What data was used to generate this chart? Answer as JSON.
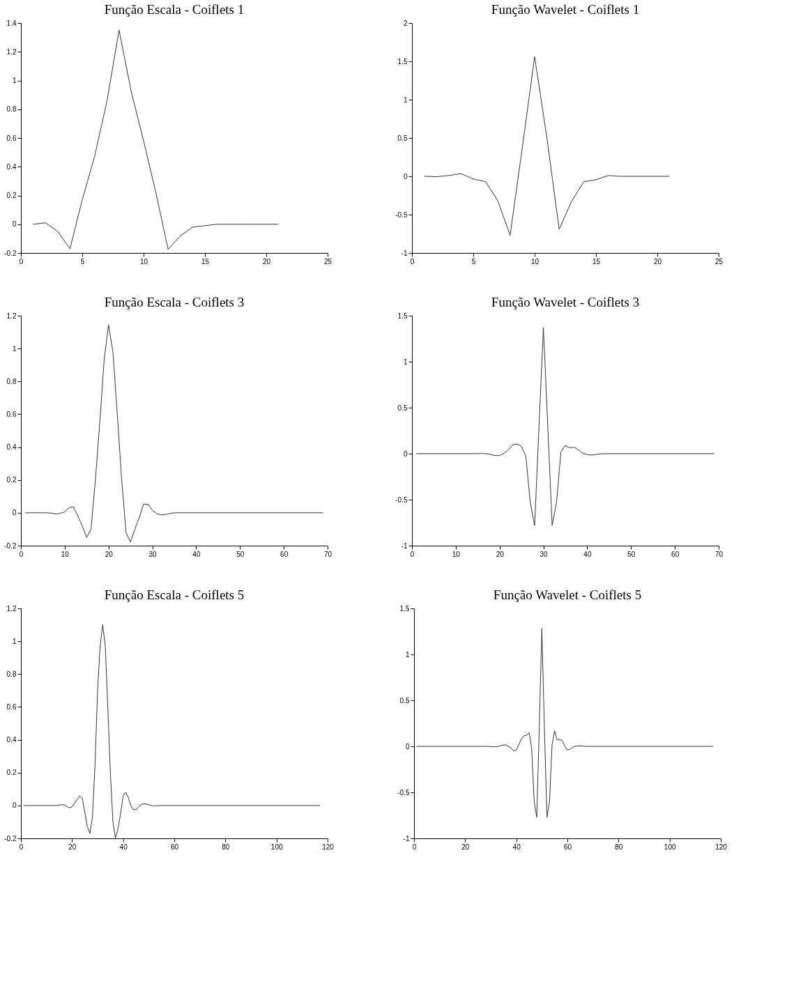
{
  "chart_data": [
    {
      "type": "line",
      "title": "Função Escala - Coiflets 1",
      "color": "#333333",
      "x": [
        1,
        2,
        3,
        4,
        5,
        6,
        7,
        8,
        9,
        10,
        11,
        12,
        13,
        14,
        15,
        16,
        17,
        18,
        19,
        20,
        21
      ],
      "values": [
        0,
        0.01,
        -0.05,
        -0.17,
        0.17,
        0.47,
        0.85,
        1.35,
        0.92,
        0.58,
        0.22,
        -0.175,
        -0.08,
        -0.02,
        -0.01,
        0,
        0,
        0,
        0,
        0,
        0
      ],
      "xlim": [
        0,
        25
      ],
      "xticks": [
        0,
        5,
        10,
        15,
        20,
        25
      ],
      "ylim": [
        -0.2,
        1.4
      ],
      "yticks": [
        -0.2,
        0,
        0.2,
        0.4,
        0.6,
        0.8,
        1,
        1.2,
        1.4
      ]
    },
    {
      "type": "line",
      "title": "Função Wavelet - Coiflets 1",
      "color": "#333333",
      "x": [
        1,
        2,
        3,
        4,
        5,
        6,
        7,
        8,
        9,
        10,
        11,
        12,
        13,
        14,
        15,
        16,
        17,
        18,
        19,
        20,
        21
      ],
      "values": [
        0,
        -0.005,
        0.01,
        0.035,
        -0.035,
        -0.07,
        -0.32,
        -0.77,
        0.38,
        1.56,
        0.5,
        -0.69,
        -0.33,
        -0.07,
        -0.045,
        0.01,
        0,
        0,
        0,
        0,
        0
      ],
      "xlim": [
        0,
        25
      ],
      "xticks": [
        0,
        5,
        10,
        15,
        20,
        25
      ],
      "ylim": [
        -1,
        2
      ],
      "yticks": [
        -1,
        -0.5,
        0,
        0.5,
        1,
        1.5,
        2
      ]
    },
    {
      "type": "line",
      "title": "Função Escala - Coiflets 3",
      "color": "#333333",
      "x": [
        1,
        6,
        7,
        8,
        9,
        10,
        11,
        12,
        13,
        14,
        15,
        16,
        17,
        18,
        19,
        20,
        21,
        22,
        23,
        24,
        25,
        26,
        27,
        28,
        29,
        30,
        31,
        32,
        33,
        34,
        35,
        69
      ],
      "values": [
        0,
        0,
        -0.002,
        -0.008,
        -0.003,
        0.005,
        0.032,
        0.036,
        -0.02,
        -0.08,
        -0.15,
        -0.1,
        0.2,
        0.55,
        0.93,
        1.145,
        0.98,
        0.6,
        0.2,
        -0.12,
        -0.178,
        -0.1,
        -0.03,
        0.053,
        0.052,
        0.015,
        -0.005,
        -0.012,
        -0.011,
        -0.004,
        0,
        0
      ],
      "xlim": [
        0,
        70
      ],
      "xticks": [
        0,
        10,
        20,
        30,
        40,
        50,
        60,
        70
      ],
      "ylim": [
        -0.2,
        1.2
      ],
      "yticks": [
        -0.2,
        0,
        0.2,
        0.4,
        0.6,
        0.8,
        1,
        1.2
      ]
    },
    {
      "type": "line",
      "title": "Função Wavelet - Coiflets 3",
      "color": "#333333",
      "x": [
        1,
        15,
        16,
        17,
        18,
        19,
        20,
        21,
        22,
        23,
        24,
        25,
        26,
        27,
        28,
        29,
        30,
        31,
        32,
        33,
        34,
        35,
        36,
        37,
        38,
        39,
        40,
        41,
        42,
        43,
        44,
        69
      ],
      "values": [
        0,
        0,
        0.003,
        0,
        -0.01,
        -0.02,
        -0.02,
        0.005,
        0.04,
        0.095,
        0.105,
        0.08,
        -0.03,
        -0.53,
        -0.78,
        0.3,
        1.37,
        0.3,
        -0.78,
        -0.53,
        0.02,
        0.09,
        0.065,
        0.07,
        0.04,
        0.005,
        -0.01,
        -0.015,
        -0.008,
        -0.003,
        0,
        0
      ],
      "xlim": [
        0,
        70
      ],
      "xticks": [
        0,
        10,
        20,
        30,
        40,
        50,
        60,
        70
      ],
      "ylim": [
        -1,
        1.5
      ],
      "yticks": [
        -1,
        -0.5,
        0,
        0.5,
        1,
        1.5
      ]
    },
    {
      "type": "line",
      "title": "Função Escala - Coiflets 5",
      "color": "#333333",
      "x": [
        1,
        14,
        16,
        17,
        19,
        20,
        21,
        23,
        24,
        25,
        26,
        27,
        28,
        29,
        30,
        31,
        32,
        33,
        34,
        35,
        36,
        37,
        38,
        39,
        40,
        41,
        42,
        43,
        44,
        45,
        46,
        47,
        48,
        49,
        50,
        51,
        52,
        53,
        54,
        117
      ],
      "values": [
        0,
        0,
        0.005,
        0.003,
        -0.015,
        -0.008,
        0.015,
        0.058,
        0.045,
        -0.04,
        -0.13,
        -0.17,
        -0.07,
        0.25,
        0.7,
        0.97,
        1.1,
        0.97,
        0.6,
        0.2,
        -0.1,
        -0.198,
        -0.14,
        -0.05,
        0.06,
        0.08,
        0.05,
        0,
        -0.025,
        -0.025,
        -0.01,
        0.005,
        0.01,
        0.009,
        0.005,
        0,
        -0.003,
        -0.002,
        0,
        0
      ],
      "xlim": [
        0,
        120
      ],
      "xticks": [
        0,
        20,
        40,
        60,
        80,
        100,
        120
      ],
      "ylim": [
        -0.2,
        1.2
      ],
      "yticks": [
        -0.2,
        0,
        0.2,
        0.4,
        0.6,
        0.8,
        1,
        1.2
      ]
    },
    {
      "type": "line",
      "title": "Função Wavelet - Coiflets 5",
      "color": "#333333",
      "x": [
        1,
        29,
        31,
        33,
        35,
        36,
        38,
        39,
        40,
        41,
        42,
        43,
        44,
        45,
        46,
        47,
        48,
        49,
        50,
        51,
        52,
        53,
        54,
        55,
        56,
        57,
        58,
        59,
        60,
        61,
        62,
        63,
        64,
        66,
        67,
        117
      ],
      "values": [
        0,
        0,
        -0.005,
        0,
        0.015,
        0.015,
        -0.02,
        -0.05,
        -0.04,
        0.02,
        0.08,
        0.115,
        0.12,
        0.15,
        -0.01,
        -0.6,
        -0.77,
        0.2,
        1.28,
        0.2,
        -0.77,
        -0.6,
        0.02,
        0.17,
        0.07,
        0.075,
        0.06,
        0,
        -0.04,
        -0.03,
        -0.01,
        0.003,
        0.005,
        0.003,
        0,
        0
      ],
      "xlim": [
        0,
        120
      ],
      "xticks": [
        0,
        20,
        40,
        60,
        80,
        100,
        120
      ],
      "ylim": [
        -1,
        1.5
      ],
      "yticks": [
        -1,
        -0.5,
        0,
        0.5,
        1,
        1.5
      ]
    }
  ]
}
